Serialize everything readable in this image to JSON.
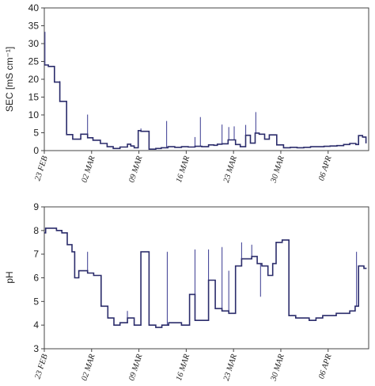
{
  "chart_data": [
    {
      "type": "line",
      "ylabel": "SEC [mS cm⁻¹]",
      "ylim": [
        0,
        40
      ],
      "y_ticks": [
        "0",
        "5",
        "10",
        "15",
        "20",
        "25",
        "30",
        "35",
        "40"
      ],
      "y_tick_values": [
        0,
        5,
        10,
        15,
        20,
        25,
        30,
        35,
        40
      ],
      "x_ticks": [
        "23 FEB",
        "02 MAR",
        "09 MAR",
        "16 MAR",
        "23 MAR",
        "30 MAR",
        "06 APR"
      ],
      "x_tick_days": [
        0,
        7,
        14,
        21,
        28,
        35,
        42
      ],
      "x_range_days": [
        0,
        48
      ],
      "grid": false,
      "colors": {
        "series": "#2b2c6b",
        "spikes": "#4a4b9a"
      },
      "series": [
        {
          "x": [
            0,
            0.6,
            1.5,
            2.3,
            3.3,
            4.2,
            5.4,
            6.4,
            7.2,
            8.3,
            9.3,
            10.2,
            11.2,
            12.3,
            12.8,
            13.3,
            13.9,
            14.3,
            15.5,
            16.5,
            17.3,
            18.3,
            19.3,
            20.3,
            21.3,
            22.3,
            23.3,
            24.3,
            25.1,
            25.6,
            26.3,
            27.2,
            28.3,
            29.0,
            29.8,
            30.5,
            31.2,
            31.8,
            32.6,
            33.3,
            34.4,
            35.4,
            36.4,
            37.4,
            38.4,
            39.4,
            40.4,
            41.4,
            42.3,
            43.3,
            44.3,
            45.2,
            46.1,
            46.5,
            47.1,
            47.6
          ],
          "y": [
            24,
            23.6,
            19.2,
            13.8,
            4.5,
            3.2,
            4.6,
            3.6,
            2.9,
            2.0,
            1.1,
            0.6,
            1.0,
            1.8,
            1.3,
            0.8,
            5.6,
            5.4,
            0.4,
            0.6,
            0.8,
            1.1,
            0.9,
            1.1,
            1.0,
            1.2,
            1.1,
            1.6,
            1.5,
            1.8,
            1.9,
            3.0,
            1.7,
            1.1,
            4.3,
            2.1,
            4.9,
            4.6,
            3.2,
            4.4,
            1.6,
            0.8,
            0.9,
            0.8,
            0.9,
            1.1,
            1.1,
            1.2,
            1.3,
            1.4,
            1.7,
            2.0,
            1.7,
            4.2,
            3.8,
            2.2
          ]
        }
      ],
      "spikes": [
        {
          "x": 0.1,
          "y": 33.3
        },
        {
          "x": 2.3,
          "y": 19.5
        },
        {
          "x": 6.4,
          "y": 10.1
        },
        {
          "x": 14.3,
          "y": 6.2
        },
        {
          "x": 18.1,
          "y": 8.3
        },
        {
          "x": 22.3,
          "y": 3.8
        },
        {
          "x": 23.1,
          "y": 9.4
        },
        {
          "x": 26.3,
          "y": 7.3
        },
        {
          "x": 27.3,
          "y": 6.6
        },
        {
          "x": 28.1,
          "y": 6.8
        },
        {
          "x": 29.8,
          "y": 7.2
        },
        {
          "x": 31.3,
          "y": 10.8
        }
      ]
    },
    {
      "type": "line",
      "ylabel": "pH",
      "ylim": [
        3,
        9
      ],
      "y_ticks": [
        "3",
        "4",
        "5",
        "6",
        "7",
        "8",
        "9"
      ],
      "y_tick_values": [
        3,
        4,
        5,
        6,
        7,
        8,
        9
      ],
      "x_ticks": [
        "23 FEB",
        "02 MAR",
        "09 MAR",
        "16 MAR",
        "23 MAR",
        "30 MAR",
        "06 APR"
      ],
      "x_tick_days": [
        0,
        7,
        14,
        21,
        28,
        35,
        42
      ],
      "x_range_days": [
        0,
        48
      ],
      "grid": false,
      "colors": {
        "series": "#2b2c6b",
        "spikes": "#4a4b9a"
      },
      "series": [
        {
          "x": [
            0,
            0.2,
            1.0,
            1.8,
            2.6,
            3.4,
            4.1,
            4.5,
            5.1,
            6.4,
            7.3,
            8.4,
            9.4,
            10.3,
            11.2,
            12.3,
            13.3,
            13.9,
            14.3,
            15.5,
            16.5,
            17.4,
            18.4,
            19.3,
            20.3,
            21.5,
            22.3,
            23.3,
            24.3,
            25.3,
            26.3,
            27.3,
            28.3,
            29.2,
            29.8,
            30.7,
            31.5,
            32.2,
            33.1,
            33.8,
            34.3,
            35.2,
            36.2,
            37.2,
            38.2,
            39.2,
            40.2,
            41.2,
            42.2,
            43.2,
            44.2,
            45.2,
            46.0,
            46.5,
            47.3
          ],
          "y": [
            7.9,
            8.1,
            8.1,
            8.0,
            7.9,
            7.4,
            7.1,
            6.0,
            6.3,
            6.2,
            6.1,
            4.8,
            4.3,
            4.0,
            4.1,
            4.3,
            4.0,
            4.0,
            7.1,
            4.0,
            3.9,
            4.0,
            4.1,
            4.1,
            4.0,
            5.3,
            4.2,
            4.2,
            5.9,
            4.7,
            4.6,
            4.5,
            6.5,
            6.8,
            6.8,
            6.9,
            6.6,
            6.5,
            6.1,
            6.6,
            7.5,
            7.6,
            4.4,
            4.3,
            4.3,
            4.2,
            4.3,
            4.4,
            4.4,
            4.5,
            4.5,
            4.6,
            4.8,
            6.5,
            6.4
          ]
        }
      ],
      "spikes": [
        {
          "x": 6.4,
          "y": 7.1
        },
        {
          "x": 12.3,
          "y": 4.6
        },
        {
          "x": 18.2,
          "y": 7.1
        },
        {
          "x": 22.3,
          "y": 7.2
        },
        {
          "x": 24.3,
          "y": 7.2
        },
        {
          "x": 26.3,
          "y": 7.3
        },
        {
          "x": 27.3,
          "y": 6.3
        },
        {
          "x": 29.2,
          "y": 7.5
        },
        {
          "x": 30.7,
          "y": 7.4
        },
        {
          "x": 32.0,
          "y": 5.2
        },
        {
          "x": 46.2,
          "y": 7.1
        }
      ]
    }
  ]
}
